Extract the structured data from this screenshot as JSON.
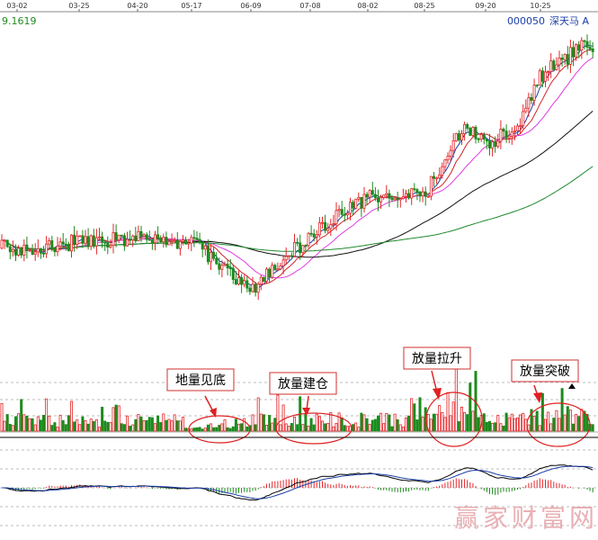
{
  "stock": {
    "code": "000050",
    "name": "深天马 A"
  },
  "price_readout": "9.1619",
  "watermark": "赢家财富网",
  "colors": {
    "up": "#e4262a",
    "down": "#1d8a1d",
    "ma5": "#1a3ea8",
    "ma10": "#d2232a",
    "ma20": "#e03ce0",
    "ma60": "#111111",
    "ma120": "#1f8a2e",
    "label_border": "#d03030",
    "grid": "#7a7a7a"
  },
  "chart_data": [
    {
      "type": "candlestick",
      "title": "",
      "x_ticks": [
        "03-02",
        "03-25",
        "04-20",
        "05-17",
        "06-09",
        "07-08",
        "08-02",
        "08-25",
        "09-20",
        "10-25"
      ],
      "moving_averages": [
        "MA5",
        "MA10",
        "MA20",
        "MA60",
        "MA120"
      ],
      "price_range": [
        4.0,
        9.3
      ],
      "approx_close_trend": [
        {
          "date": "03-02",
          "close": 5.5
        },
        {
          "date": "03-25",
          "close": 5.6
        },
        {
          "date": "04-20",
          "close": 5.7
        },
        {
          "date": "05-17",
          "close": 5.6
        },
        {
          "date": "06-09",
          "close": 4.8
        },
        {
          "date": "07-08",
          "close": 5.7
        },
        {
          "date": "08-02",
          "close": 6.4
        },
        {
          "date": "08-25",
          "close": 6.4
        },
        {
          "date": "09-05",
          "close": 7.6
        },
        {
          "date": "09-20",
          "close": 7.3
        },
        {
          "date": "10-10",
          "close": 7.6
        },
        {
          "date": "10-25",
          "close": 8.5
        },
        {
          "date": "11-05",
          "close": 9.0
        }
      ]
    },
    {
      "type": "bar",
      "title": "",
      "subtitle": "volume",
      "annotations": [
        {
          "text": "地量见底"
        },
        {
          "text": "放量建仓"
        },
        {
          "text": "放量拉升"
        },
        {
          "text": "放量突破"
        }
      ]
    },
    {
      "type": "line",
      "title": "",
      "subtitle": "MACD",
      "series": [
        {
          "values": []
        },
        {
          "values": []
        }
      ]
    }
  ]
}
